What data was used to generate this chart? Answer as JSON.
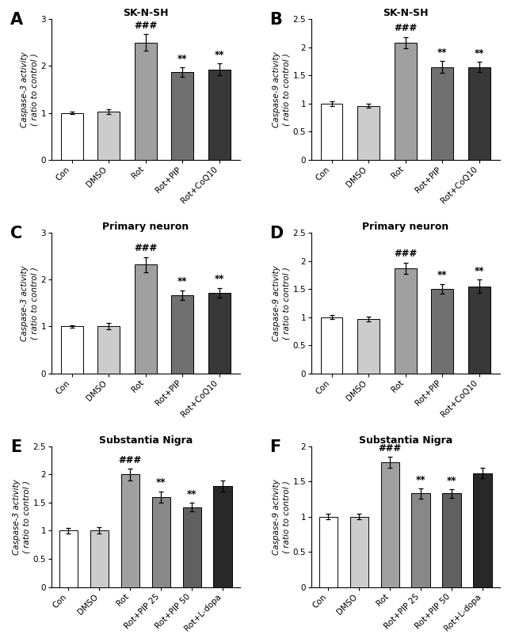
{
  "panels": [
    {
      "label": "A",
      "title": "SK-N-SH",
      "ylabel": "Caspase-3 activity\n( ratio to control )",
      "categories": [
        "Con",
        "DMSO",
        "Rot",
        "Rot+PIP",
        "Rot+CoQ10"
      ],
      "values": [
        1.0,
        1.02,
        2.5,
        1.87,
        1.93
      ],
      "errors": [
        0.03,
        0.05,
        0.18,
        0.1,
        0.12
      ],
      "ylim": [
        0,
        3
      ],
      "yticks": [
        0,
        1,
        2,
        3
      ],
      "colors": [
        "#FFFFFF",
        "#CCCCCC",
        "#A0A0A0",
        "#707070",
        "#383838"
      ],
      "sig_above": [
        "",
        "",
        "###",
        "**",
        "**"
      ]
    },
    {
      "label": "B",
      "title": "SK-N-SH",
      "ylabel": "Caspase-9 activity\n( ratio to control )",
      "categories": [
        "Con",
        "DMSO",
        "Rot",
        "Rot+PIP",
        "Rot+CoQ10"
      ],
      "values": [
        1.0,
        0.96,
        2.08,
        1.65,
        1.65
      ],
      "errors": [
        0.04,
        0.04,
        0.1,
        0.1,
        0.09
      ],
      "ylim": [
        0,
        2.5
      ],
      "yticks": [
        0.0,
        0.5,
        1.0,
        1.5,
        2.0,
        2.5
      ],
      "colors": [
        "#FFFFFF",
        "#CCCCCC",
        "#A0A0A0",
        "#707070",
        "#383838"
      ],
      "sig_above": [
        "",
        "",
        "###",
        "**",
        "**"
      ]
    },
    {
      "label": "C",
      "title": "Primary neuron",
      "ylabel": "Caspase-3 activity\n( ratio to control )",
      "categories": [
        "Con",
        "DMSO",
        "Rot",
        "Rot+PIP",
        "Rot+CoQ10"
      ],
      "values": [
        1.0,
        1.01,
        2.32,
        1.67,
        1.72
      ],
      "errors": [
        0.03,
        0.07,
        0.16,
        0.1,
        0.1
      ],
      "ylim": [
        0,
        3
      ],
      "yticks": [
        0,
        1,
        2,
        3
      ],
      "colors": [
        "#FFFFFF",
        "#CCCCCC",
        "#A0A0A0",
        "#707070",
        "#383838"
      ],
      "sig_above": [
        "",
        "",
        "###",
        "**",
        "**"
      ]
    },
    {
      "label": "D",
      "title": "Primary neuron",
      "ylabel": "Caspase-9 activity\n( ratio to control )",
      "categories": [
        "Con",
        "DMSO",
        "Rot",
        "Rot+PIP",
        "Rot+CoQ10"
      ],
      "values": [
        1.0,
        0.97,
        1.87,
        1.5,
        1.55
      ],
      "errors": [
        0.04,
        0.04,
        0.1,
        0.09,
        0.12
      ],
      "ylim": [
        0,
        2.5
      ],
      "yticks": [
        0.0,
        0.5,
        1.0,
        1.5,
        2.0,
        2.5
      ],
      "colors": [
        "#FFFFFF",
        "#CCCCCC",
        "#A0A0A0",
        "#707070",
        "#383838"
      ],
      "sig_above": [
        "",
        "",
        "###",
        "**",
        "**"
      ]
    },
    {
      "label": "E",
      "title": "Substantia Nigra",
      "ylabel": "Caspase-3 activity\n( ratio to control )",
      "categories": [
        "Con",
        "DMSO",
        "Rot",
        "Rot+PIP 25",
        "Rot+PIP 50",
        "Rot+L-dopa"
      ],
      "values": [
        1.0,
        1.01,
        2.0,
        1.6,
        1.42,
        1.8
      ],
      "errors": [
        0.05,
        0.06,
        0.1,
        0.1,
        0.08,
        0.1
      ],
      "ylim": [
        0,
        2.5
      ],
      "yticks": [
        0.0,
        0.5,
        1.0,
        1.5,
        2.0,
        2.5
      ],
      "colors": [
        "#FFFFFF",
        "#CCCCCC",
        "#A0A0A0",
        "#888888",
        "#606060",
        "#282828"
      ],
      "sig_above": [
        "",
        "",
        "###",
        "**",
        "**",
        ""
      ]
    },
    {
      "label": "F",
      "title": "Substantia Nigra",
      "ylabel": "Caspase-9 activity\n( ratio to control )",
      "categories": [
        "Con",
        "DMSO",
        "Rot",
        "Rot+PIP 25",
        "Rot+PIP 50",
        "Rot+L-dopa"
      ],
      "values": [
        1.0,
        1.0,
        1.77,
        1.33,
        1.33,
        1.62
      ],
      "errors": [
        0.04,
        0.04,
        0.08,
        0.07,
        0.06,
        0.07
      ],
      "ylim": [
        0,
        2.0
      ],
      "yticks": [
        0.0,
        0.5,
        1.0,
        1.5,
        2.0
      ],
      "colors": [
        "#FFFFFF",
        "#CCCCCC",
        "#A0A0A0",
        "#888888",
        "#606060",
        "#282828"
      ],
      "sig_above": [
        "",
        "",
        "###",
        "**",
        "**",
        ""
      ]
    }
  ],
  "background_color": "#FFFFFF",
  "bar_edge_color": "#000000",
  "error_color": "#000000",
  "label_fontsize": 15,
  "title_fontsize": 9,
  "tick_fontsize": 7.5,
  "ylabel_fontsize": 7.5,
  "sig_fontsize": 8.5
}
